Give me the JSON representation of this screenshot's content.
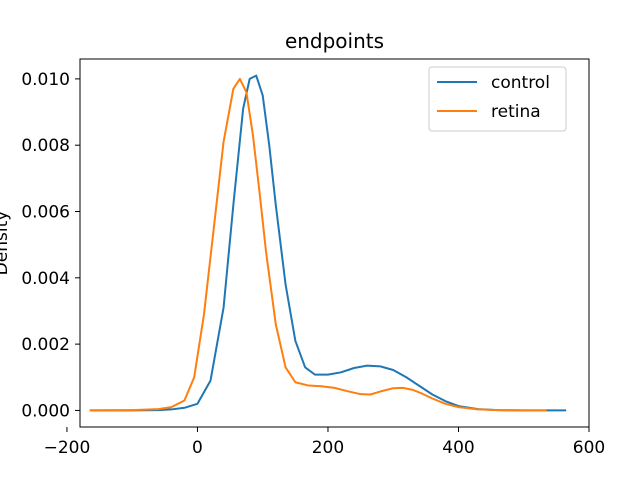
{
  "chart_data": {
    "type": "line",
    "title": "endpoints",
    "xlabel": "",
    "ylabel": "Density",
    "xlim": [
      -180,
      600
    ],
    "ylim": [
      -0.0005,
      0.0106
    ],
    "xticks": [
      -200,
      0,
      200,
      400,
      600
    ],
    "xtick_labels": [
      "−200",
      "0",
      "200",
      "400",
      "600"
    ],
    "yticks": [
      0.0,
      0.002,
      0.004,
      0.006,
      0.008,
      0.01
    ],
    "ytick_labels": [
      "0.000",
      "0.002",
      "0.004",
      "0.006",
      "0.008",
      "0.010"
    ],
    "grid": false,
    "legend_position": "top-right",
    "series": [
      {
        "name": "control",
        "color": "#1f77b4",
        "x": [
          -165,
          -100,
          -60,
          -40,
          -20,
          0,
          20,
          40,
          55,
          70,
          80,
          90,
          100,
          110,
          120,
          135,
          150,
          165,
          180,
          200,
          220,
          240,
          260,
          280,
          300,
          320,
          340,
          360,
          380,
          400,
          430,
          460,
          500,
          540,
          565
        ],
        "y": [
          0.0,
          0.0,
          1e-05,
          3e-05,
          8e-05,
          0.0002,
          0.0009,
          0.0031,
          0.0062,
          0.0091,
          0.01,
          0.0101,
          0.0095,
          0.008,
          0.0062,
          0.0038,
          0.0021,
          0.0013,
          0.00108,
          0.00108,
          0.00115,
          0.00128,
          0.00135,
          0.00133,
          0.00122,
          0.001,
          0.00074,
          0.00048,
          0.00028,
          0.00013,
          4e-05,
          1e-05,
          0.0,
          0.0,
          0.0
        ]
      },
      {
        "name": "retina",
        "color": "#ff7f0e",
        "x": [
          -165,
          -100,
          -60,
          -40,
          -20,
          -5,
          10,
          25,
          40,
          55,
          65,
          75,
          85,
          95,
          105,
          120,
          135,
          150,
          170,
          190,
          210,
          230,
          250,
          265,
          280,
          300,
          315,
          330,
          345,
          360,
          380,
          400,
          430,
          460,
          500,
          535
        ],
        "y": [
          0.0,
          1e-05,
          4e-05,
          0.0001,
          0.0003,
          0.001,
          0.0029,
          0.0055,
          0.0081,
          0.0097,
          0.01,
          0.0096,
          0.0083,
          0.0066,
          0.0048,
          0.0026,
          0.0013,
          0.00085,
          0.00075,
          0.00073,
          0.00068,
          0.00058,
          0.00049,
          0.00048,
          0.00057,
          0.00067,
          0.00068,
          0.00062,
          0.0005,
          0.00036,
          0.0002,
          0.0001,
          3e-05,
          1e-05,
          0.0,
          0.0
        ]
      }
    ]
  }
}
